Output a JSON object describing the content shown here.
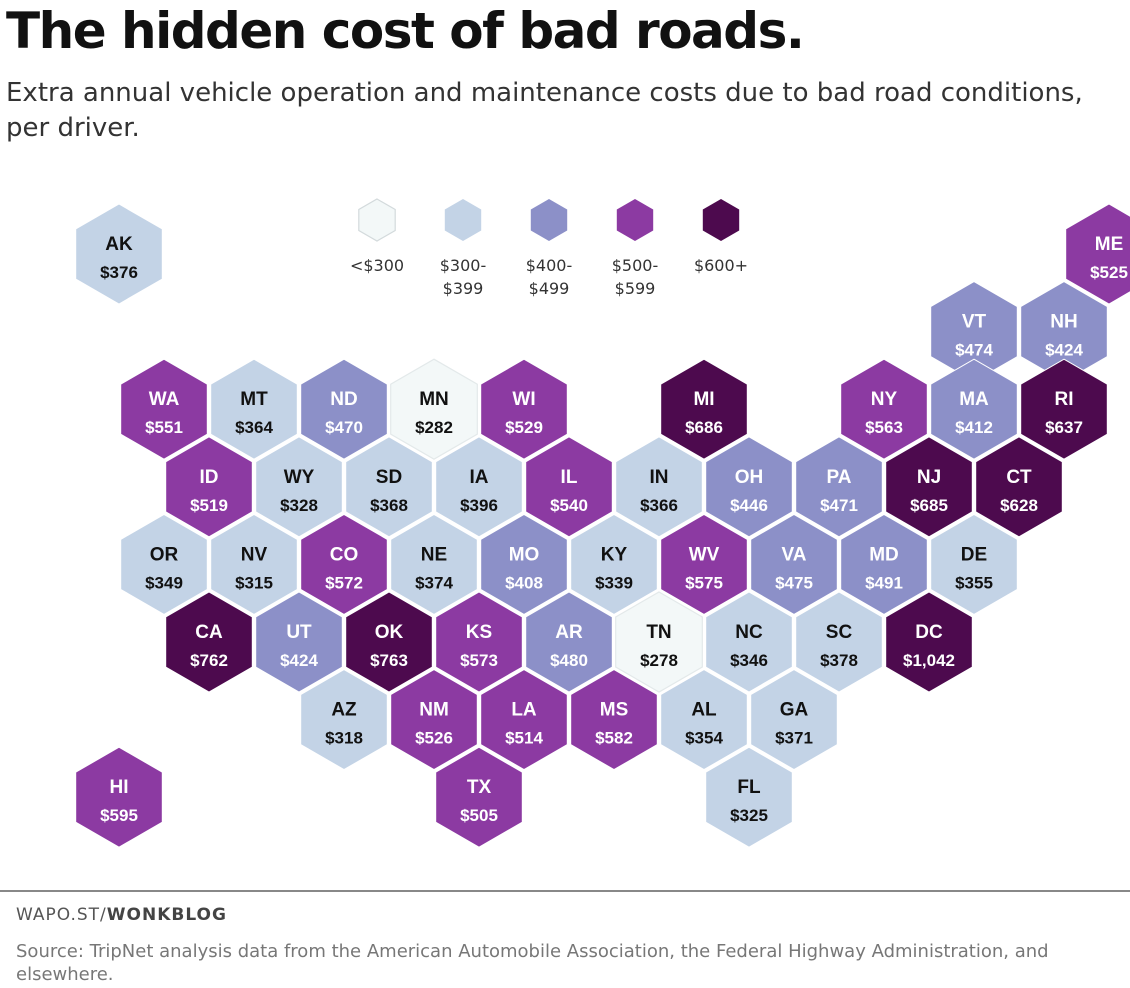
{
  "title": "The hidden cost of bad roads.",
  "subtitle": "Extra annual vehicle operation and maintenance costs due to bad road conditions, per driver.",
  "colors": {
    "lt300": "#f3f8f8",
    "r300": "#c3d3e6",
    "r400": "#8c90c8",
    "r500": "#8c3aa2",
    "r600": "#4d0a4e",
    "light_text": "#111111",
    "dark_text": "#ffffff",
    "stroke": "#ffffff"
  },
  "legend": [
    {
      "label": [
        "<$300"
      ],
      "color_key": "lt300"
    },
    {
      "label": [
        "$300-",
        "$399"
      ],
      "color_key": "r300"
    },
    {
      "label": [
        "$400-",
        "$499"
      ],
      "color_key": "r400"
    },
    {
      "label": [
        "$500-",
        "$599"
      ],
      "color_key": "r500"
    },
    {
      "label": [
        "$600+"
      ],
      "color_key": "r600"
    }
  ],
  "chart_data": {
    "type": "hex-tile-map",
    "unit": "USD per driver per year",
    "states": [
      {
        "abbr": "AK",
        "value": "$376",
        "amount": 376
      },
      {
        "abbr": "HI",
        "value": "$595",
        "amount": 595
      },
      {
        "abbr": "ME",
        "value": "$525",
        "amount": 525
      },
      {
        "abbr": "VT",
        "value": "$474",
        "amount": 474
      },
      {
        "abbr": "NH",
        "value": "$424",
        "amount": 424
      },
      {
        "abbr": "WA",
        "value": "$551",
        "amount": 551
      },
      {
        "abbr": "MT",
        "value": "$364",
        "amount": 364
      },
      {
        "abbr": "ND",
        "value": "$470",
        "amount": 470
      },
      {
        "abbr": "MN",
        "value": "$282",
        "amount": 282
      },
      {
        "abbr": "WI",
        "value": "$529",
        "amount": 529
      },
      {
        "abbr": "MI",
        "value": "$686",
        "amount": 686
      },
      {
        "abbr": "NY",
        "value": "$563",
        "amount": 563
      },
      {
        "abbr": "MA",
        "value": "$412",
        "amount": 412
      },
      {
        "abbr": "RI",
        "value": "$637",
        "amount": 637
      },
      {
        "abbr": "ID",
        "value": "$519",
        "amount": 519
      },
      {
        "abbr": "WY",
        "value": "$328",
        "amount": 328
      },
      {
        "abbr": "SD",
        "value": "$368",
        "amount": 368
      },
      {
        "abbr": "IA",
        "value": "$396",
        "amount": 396
      },
      {
        "abbr": "IL",
        "value": "$540",
        "amount": 540
      },
      {
        "abbr": "IN",
        "value": "$366",
        "amount": 366
      },
      {
        "abbr": "OH",
        "value": "$446",
        "amount": 446
      },
      {
        "abbr": "PA",
        "value": "$471",
        "amount": 471
      },
      {
        "abbr": "NJ",
        "value": "$685",
        "amount": 685
      },
      {
        "abbr": "CT",
        "value": "$628",
        "amount": 628
      },
      {
        "abbr": "OR",
        "value": "$349",
        "amount": 349
      },
      {
        "abbr": "NV",
        "value": "$315",
        "amount": 315
      },
      {
        "abbr": "CO",
        "value": "$572",
        "amount": 572
      },
      {
        "abbr": "NE",
        "value": "$374",
        "amount": 374
      },
      {
        "abbr": "MO",
        "value": "$408",
        "amount": 408
      },
      {
        "abbr": "KY",
        "value": "$339",
        "amount": 339
      },
      {
        "abbr": "WV",
        "value": "$575",
        "amount": 575
      },
      {
        "abbr": "VA",
        "value": "$475",
        "amount": 475
      },
      {
        "abbr": "MD",
        "value": "$491",
        "amount": 491
      },
      {
        "abbr": "DE",
        "value": "$355",
        "amount": 355
      },
      {
        "abbr": "CA",
        "value": "$762",
        "amount": 762
      },
      {
        "abbr": "UT",
        "value": "$424",
        "amount": 424
      },
      {
        "abbr": "OK",
        "value": "$763",
        "amount": 763
      },
      {
        "abbr": "KS",
        "value": "$573",
        "amount": 573
      },
      {
        "abbr": "AR",
        "value": "$480",
        "amount": 480
      },
      {
        "abbr": "TN",
        "value": "$278",
        "amount": 278
      },
      {
        "abbr": "NC",
        "value": "$346",
        "amount": 346
      },
      {
        "abbr": "SC",
        "value": "$378",
        "amount": 378
      },
      {
        "abbr": "DC",
        "value": "$1,042",
        "amount": 1042
      },
      {
        "abbr": "AZ",
        "value": "$318",
        "amount": 318
      },
      {
        "abbr": "NM",
        "value": "$526",
        "amount": 526
      },
      {
        "abbr": "LA",
        "value": "$514",
        "amount": 514
      },
      {
        "abbr": "MS",
        "value": "$582",
        "amount": 582
      },
      {
        "abbr": "AL",
        "value": "$354",
        "amount": 354
      },
      {
        "abbr": "GA",
        "value": "$371",
        "amount": 371
      },
      {
        "abbr": "TX",
        "value": "$505",
        "amount": 505
      },
      {
        "abbr": "FL",
        "value": "$325",
        "amount": 325
      }
    ]
  },
  "footer": {
    "brand_prefix": "WAPO.ST/",
    "brand_name": "WONKBLOG",
    "source": "Source: TripNet analysis data from the American Automobile Association, the Federal Highway Administration, and elsewhere."
  }
}
